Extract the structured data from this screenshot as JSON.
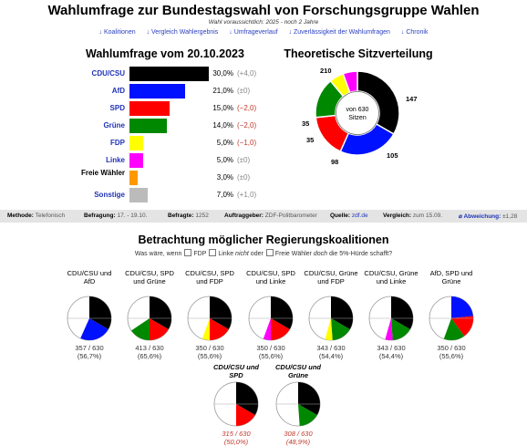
{
  "header": {
    "title": "Wahlumfrage zur Bundestagswahl von Forschungsgruppe Wahlen",
    "subtitle": "Wahl voraussichtlich: 2025 - noch 2 Jahre",
    "nav": [
      "↓ Koalitionen",
      "↓ Vergleich Wahlergebnis",
      "↓ Umfrageverlauf",
      "↓ Zuverlässigkeit der Wahlumfragen",
      "↓ Chronik"
    ]
  },
  "poll": {
    "title": "Wahlumfrage vom 20.10.2023",
    "parties": [
      {
        "name": "CDU/CSU",
        "pct": "30,0%",
        "change": "(+4,0)",
        "value": 30.0,
        "color": "#000000",
        "dir": "pos",
        "link": true
      },
      {
        "name": "AfD",
        "pct": "21,0%",
        "change": "(±0)",
        "value": 21.0,
        "color": "#0011ff",
        "dir": "zero",
        "link": true
      },
      {
        "name": "SPD",
        "pct": "15,0%",
        "change": "(−2,0)",
        "value": 15.0,
        "color": "#ff0000",
        "dir": "neg",
        "link": true
      },
      {
        "name": "Grüne",
        "pct": "14,0%",
        "change": "(−2,0)",
        "value": 14.0,
        "color": "#008800",
        "dir": "neg",
        "link": true
      },
      {
        "name": "FDP",
        "pct": "5,0%",
        "change": "(−1,0)",
        "value": 5.0,
        "color": "#ffff00",
        "dir": "neg",
        "link": true
      },
      {
        "name": "Linke",
        "pct": "5,0%",
        "change": "(±0)",
        "value": 5.0,
        "color": "#ff00ff",
        "dir": "zero",
        "link": true
      },
      {
        "name": "Freie Wähler",
        "pct": "3,0%",
        "change": "(±0)",
        "value": 3.0,
        "color": "#ff9900",
        "dir": "zero",
        "link": false
      },
      {
        "name": "Sonstige",
        "pct": "7,0%",
        "change": "(+1,0)",
        "value": 7.0,
        "color": "#bbbbbb",
        "dir": "pos",
        "link": true
      }
    ]
  },
  "seats": {
    "title": "Theoretische Sitzverteilung",
    "center_line1": "von 630",
    "center_line2": "Sitzen",
    "parties": [
      {
        "name": "CDU/CSU",
        "seats": 210,
        "color": "#000000"
      },
      {
        "name": "AfD",
        "seats": 147,
        "color": "#0011ff"
      },
      {
        "name": "SPD",
        "seats": 105,
        "color": "#ff0000"
      },
      {
        "name": "Grüne",
        "seats": 98,
        "color": "#008800"
      },
      {
        "name": "FDP",
        "seats": 35,
        "color": "#ffff00"
      },
      {
        "name": "Linke",
        "seats": 35,
        "color": "#ff00ff"
      }
    ]
  },
  "method": {
    "methode_label": "Methode:",
    "methode": "Telefonisch",
    "befragung_label": "Befragung:",
    "befragung": "17. - 19.10.",
    "befragte_label": "Befragte:",
    "befragte": "1252",
    "auftrag_label": "Auftraggeber:",
    "auftrag": "ZDF-Politbarometer",
    "quelle_label": "Quelle:",
    "quelle": "zdf.de",
    "vergleich_label": "Vergleich:",
    "vergleich": "zum 15.09.",
    "abw_label": "⌀ Abweichung:",
    "abw": "±1,28"
  },
  "coalitions": {
    "title": "Betrachtung möglicher Regierungskoalitionen",
    "q_prefix": "Was wäre, wenn",
    "q_fdp": "FDP",
    "q_linke_a": "Linke",
    "q_linke_b": "nicht",
    "q_linke_c": "oder",
    "q_fw_a": "Freie Wähler",
    "q_fw_b": "doch",
    "q_fw_c": "die 5%-Hürde schafft?",
    "items": [
      {
        "name": "CDU/CSU und AfD",
        "seats": "357 / 630",
        "pct": "(56,7%)",
        "fail": false,
        "segs": [
          [
            210,
            "#000000"
          ],
          [
            147,
            "#0011ff"
          ]
        ]
      },
      {
        "name": "CDU/CSU, SPD und Grüne",
        "seats": "413 / 630",
        "pct": "(65,6%)",
        "fail": false,
        "segs": [
          [
            210,
            "#000000"
          ],
          [
            105,
            "#ff0000"
          ],
          [
            98,
            "#008800"
          ]
        ]
      },
      {
        "name": "CDU/CSU, SPD und FDP",
        "seats": "350 / 630",
        "pct": "(55,6%)",
        "fail": false,
        "segs": [
          [
            210,
            "#000000"
          ],
          [
            105,
            "#ff0000"
          ],
          [
            35,
            "#ffff00"
          ]
        ]
      },
      {
        "name": "CDU/CSU, SPD und Linke",
        "seats": "350 / 630",
        "pct": "(55,6%)",
        "fail": false,
        "segs": [
          [
            210,
            "#000000"
          ],
          [
            105,
            "#ff0000"
          ],
          [
            35,
            "#ff00ff"
          ]
        ]
      },
      {
        "name": "CDU/CSU, Grüne und FDP",
        "seats": "343 / 630",
        "pct": "(54,4%)",
        "fail": false,
        "segs": [
          [
            210,
            "#000000"
          ],
          [
            98,
            "#008800"
          ],
          [
            35,
            "#ffff00"
          ]
        ]
      },
      {
        "name": "CDU/CSU, Grüne und Linke",
        "seats": "343 / 630",
        "pct": "(54,4%)",
        "fail": false,
        "segs": [
          [
            210,
            "#000000"
          ],
          [
            98,
            "#008800"
          ],
          [
            35,
            "#ff00ff"
          ]
        ]
      },
      {
        "name": "AfD, SPD und Grüne",
        "seats": "350 / 630",
        "pct": "(55,6%)",
        "fail": false,
        "segs": [
          [
            147,
            "#0011ff"
          ],
          [
            105,
            "#ff0000"
          ],
          [
            98,
            "#008800"
          ]
        ]
      },
      {
        "name": "CDU/CSU und SPD",
        "seats": "315 / 630",
        "pct": "(50,0%)",
        "fail": true,
        "segs": [
          [
            210,
            "#000000"
          ],
          [
            105,
            "#ff0000"
          ]
        ]
      },
      {
        "name": "CDU/CSU und Grüne",
        "seats": "308 / 630",
        "pct": "(48,9%)",
        "fail": true,
        "segs": [
          [
            210,
            "#000000"
          ],
          [
            98,
            "#008800"
          ]
        ]
      }
    ]
  }
}
